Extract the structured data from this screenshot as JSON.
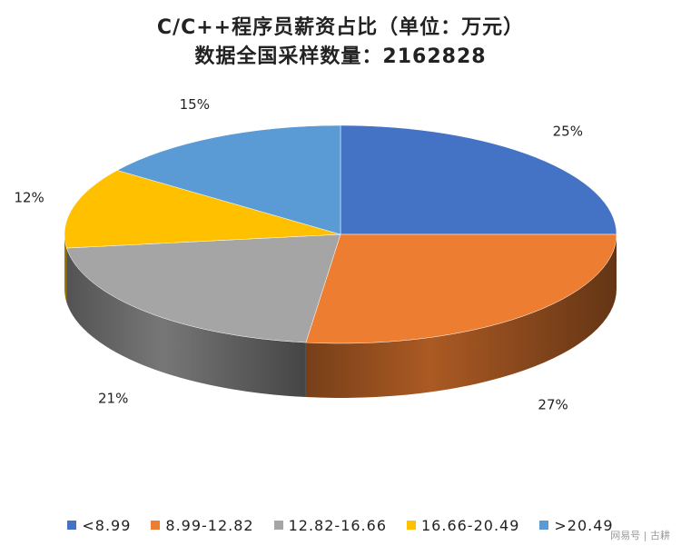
{
  "title_line1": "C/C++程序员薪资占比（单位：万元）",
  "title_line2": "数据全国采样数量：2162828",
  "chart_data": {
    "type": "pie",
    "style": "3d",
    "legend_position": "bottom",
    "slices": [
      {
        "label": "<8.99",
        "value": 25,
        "data_label": "25%",
        "color": "#4472C4"
      },
      {
        "label": "8.99-12.82",
        "value": 27,
        "data_label": "27%",
        "color": "#ED7D31"
      },
      {
        "label": "12.82-16.66",
        "value": 21,
        "data_label": "21%",
        "color": "#A5A5A5"
      },
      {
        "label": "16.66-20.49",
        "value": 12,
        "data_label": "12%",
        "color": "#FFC000"
      },
      {
        "label": ">20.49",
        "value": 15,
        "data_label": "15%",
        "color": "#5B9BD5"
      }
    ]
  },
  "watermark": "网易号 | 古耕"
}
